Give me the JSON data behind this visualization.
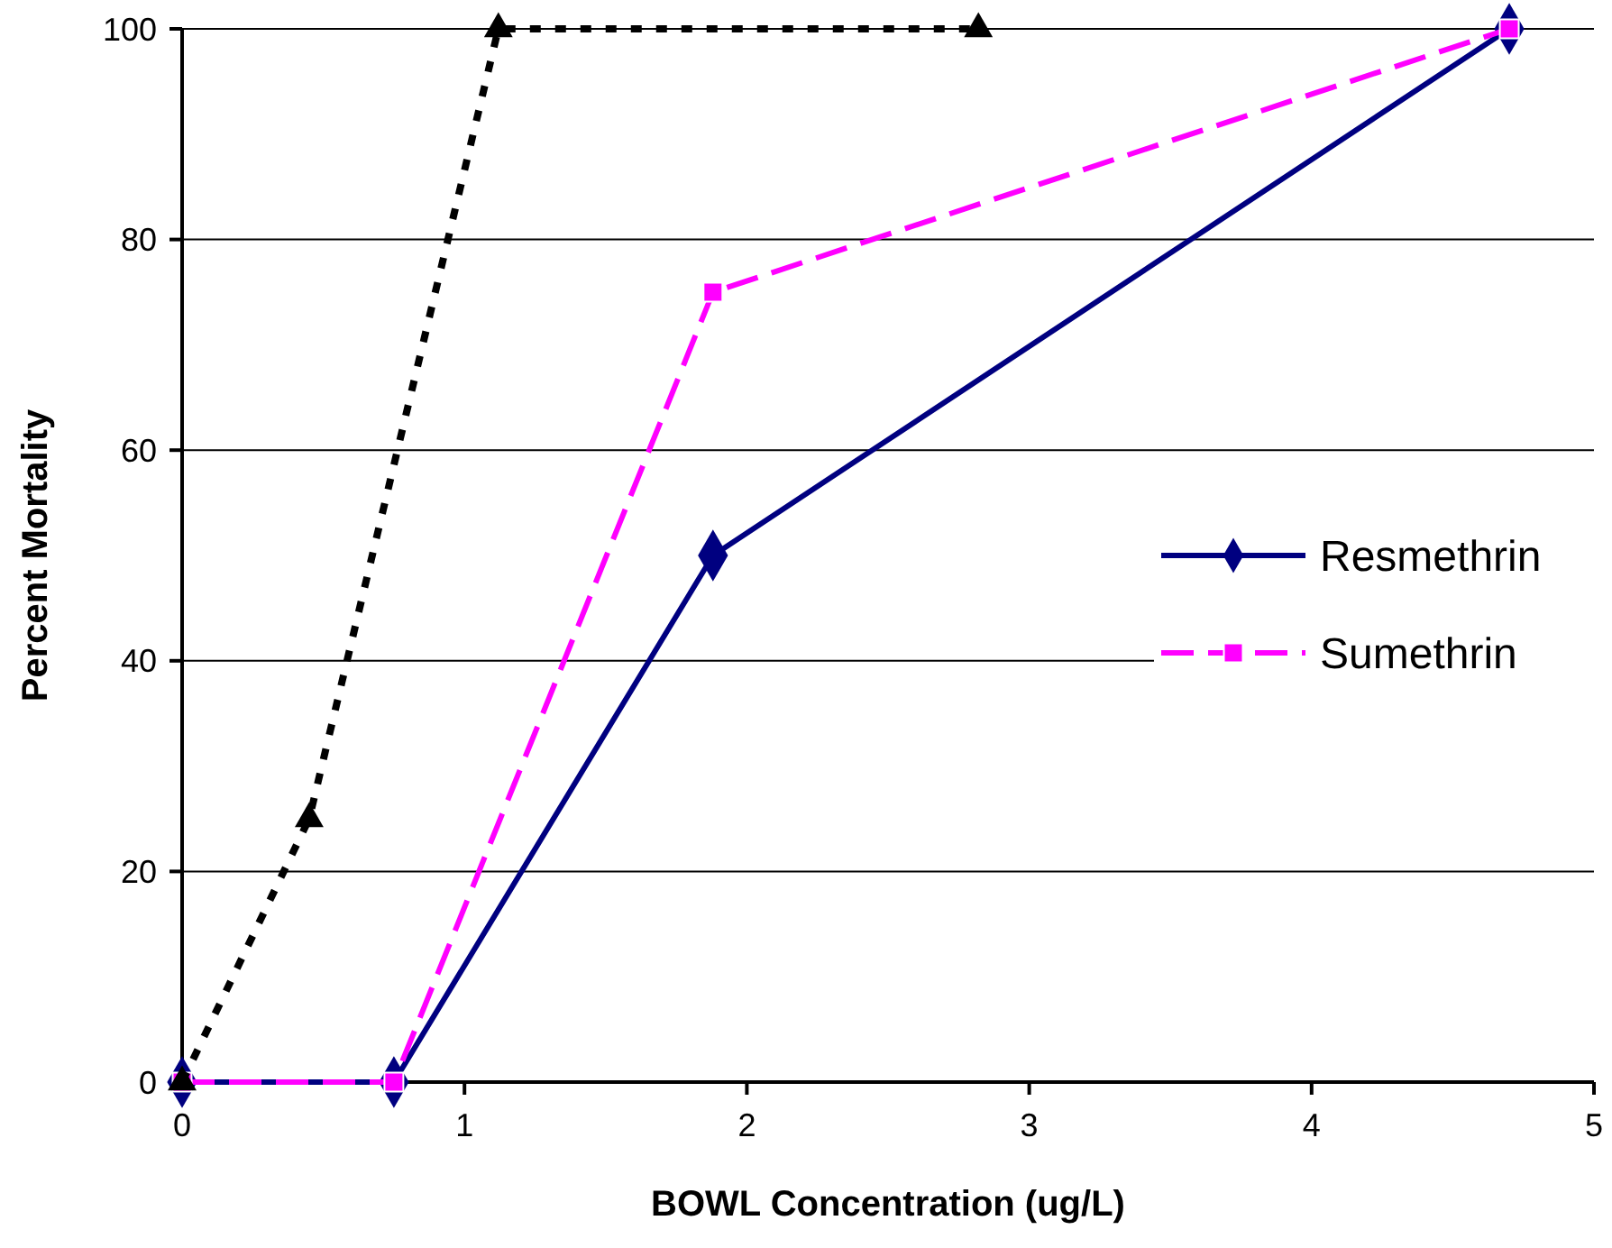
{
  "chart_data": {
    "type": "line",
    "xlabel": "BOWL Concentration (ug/L)",
    "ylabel": "Percent Mortality",
    "xlim": [
      0,
      5
    ],
    "xticks": [
      0,
      1,
      2,
      3,
      4,
      5
    ],
    "ylim": [
      0,
      100
    ],
    "yticks": [
      0,
      20,
      40,
      60,
      80,
      100
    ],
    "grid": "y",
    "legend": "right",
    "series": [
      {
        "name": "Resmethrin",
        "color": "#000080",
        "x": [
          0,
          0.75,
          1.88,
          4.7
        ],
        "values": [
          0,
          0,
          50,
          100
        ],
        "marker": "diamond",
        "line_style": "solid"
      },
      {
        "name": "Sumethrin",
        "color": "#ff00ff",
        "x": [
          0,
          0.75,
          1.88,
          4.7
        ],
        "values": [
          0,
          0,
          75,
          100
        ],
        "marker": "square",
        "line_style": "dashed"
      },
      {
        "color": "#000000",
        "x": [
          0,
          0.45,
          1.12,
          2.82
        ],
        "values": [
          0,
          25,
          100,
          100
        ],
        "marker": "triangle",
        "line_style": "dotted"
      }
    ]
  }
}
